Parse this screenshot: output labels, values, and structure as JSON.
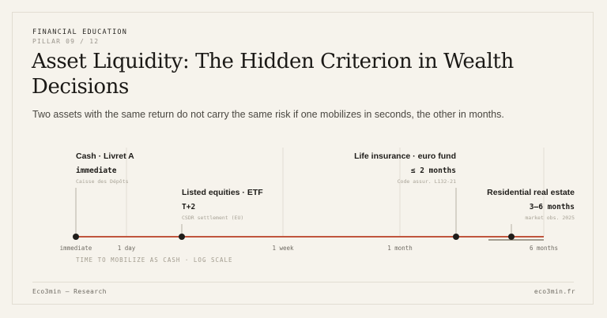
{
  "header": {
    "kicker": "FINANCIAL EDUCATION",
    "pillar": "PILLAR 09 / 12",
    "title": "Asset Liquidity: The Hidden Criterion in Wealth Decisions",
    "subtitle": "Two assets with the same return do not carry the same risk if one mobilizes in seconds, the other in months."
  },
  "axis": {
    "caption": "TIME TO MOBILIZE AS CASH · LOG SCALE",
    "scale": "log",
    "ticks": [
      "immediate",
      "1 day",
      "1 week",
      "1 month",
      "6 months"
    ]
  },
  "assets": [
    {
      "name": "Cash · Livret A",
      "delay": "immediate",
      "source": "Caisse des Dépôts"
    },
    {
      "name": "Listed equities · ETF",
      "delay": "T+2",
      "source": "CSDR settlement (EU)"
    },
    {
      "name": "Life insurance · euro fund",
      "delay": "≤ 2 months",
      "source": "Code assur. L132-21"
    },
    {
      "name": "Residential real estate",
      "delay": "3–6 months",
      "source": "market obs. 2025"
    }
  ],
  "footer": {
    "left": "Eco3min — Research",
    "right": "eco3min.fr"
  },
  "colors": {
    "background": "#f6f3ec",
    "timeline": "#c0553d",
    "dot": "#1f1d1a",
    "range_bar": "#a29c8f"
  }
}
